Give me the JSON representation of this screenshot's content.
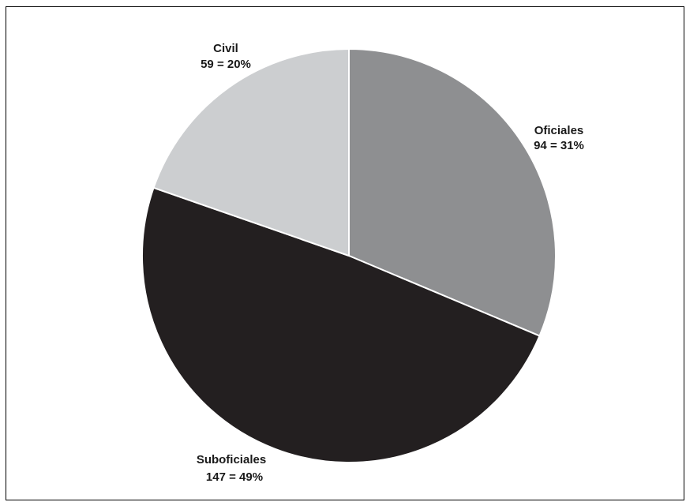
{
  "chart_data": {
    "type": "pie",
    "title": "",
    "start_angle_deg": 0,
    "direction": "clockwise",
    "slices": [
      {
        "label": "Oficiales",
        "value": 94,
        "percent_text": "31%",
        "display": "94 = 31%",
        "color": "#8e8f91"
      },
      {
        "label": "Suboficiales",
        "value": 147,
        "percent_text": "49%",
        "display": "147 = 49%",
        "color": "#231f20"
      },
      {
        "label": "Civil",
        "value": 59,
        "percent_text": "20%",
        "display": "59 = 20%",
        "color": "#ccced0"
      }
    ]
  }
}
